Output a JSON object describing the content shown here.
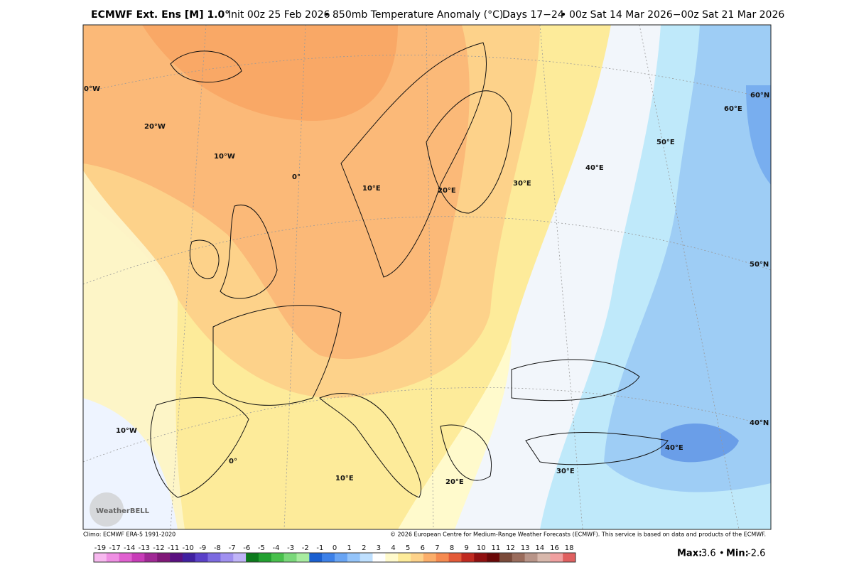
{
  "header": {
    "title": "ECMWF Ext. Ens [M] 1.0°",
    "init": "Init 00z 25 Feb 2026",
    "bullet": "•",
    "field": "850mb Temperature Anomaly (°C)",
    "days": "Days 17−24",
    "bullet2": "•",
    "period": "00z Sat 14 Mar 2026−00z Sat 21 Mar 2026"
  },
  "map": {
    "grid_labels": [
      "0°W",
      "20°W",
      "10°W",
      "0°",
      "10°E",
      "20°E",
      "30°E",
      "40°E",
      "50°E",
      "60°E",
      "60°N",
      "50°N",
      "40°N",
      "10°W",
      "0°",
      "10°E",
      "20°E",
      "30°E",
      "40°E"
    ],
    "logo": "WeatherBELL"
  },
  "footer": {
    "climo": "Climo: ECMWF ERA-5 1991-2020",
    "copyright": "© 2026 European Centre for Medium-Range Weather Forecasts (ECMWF). This service is based on data and products of the ECMWF."
  },
  "colorbar": {
    "labels": [
      -19,
      -17,
      -14,
      -13,
      -12,
      -11,
      -10,
      -9,
      -8,
      -7,
      -6,
      -5,
      -4,
      -3,
      -2,
      -1,
      0,
      1,
      2,
      3,
      4,
      5,
      6,
      7,
      8,
      9,
      10,
      11,
      12,
      13,
      14,
      16,
      18
    ],
    "colors": [
      "#f7b8ef",
      "#ef8fe3",
      "#e060d0",
      "#c83cb8",
      "#a02895",
      "#801878",
      "#5a1080",
      "#4020a0",
      "#5a40c8",
      "#7c6ae0",
      "#a090f0",
      "#c0b4f8",
      "#0c7a1c",
      "#22a030",
      "#48c04c",
      "#7ad87a",
      "#a8eca0",
      "#1a5fd0",
      "#3c80e8",
      "#68a4f4",
      "#94c4fa",
      "#bfe0ff",
      "#ffffff",
      "#fffacc",
      "#fdeb9a",
      "#fdd28a",
      "#fbae6a",
      "#f58a50",
      "#e35a38",
      "#c02a20",
      "#901010",
      "#6a0808",
      "#7a4a3a",
      "#9a6c5c",
      "#b89488",
      "#d8b8ac",
      "#f0a0a0",
      "#e06060"
    ]
  },
  "stats": {
    "max_label": "Max:",
    "max": 3.6,
    "sep": "•",
    "min_label": "Min:",
    "min": -2.6
  }
}
